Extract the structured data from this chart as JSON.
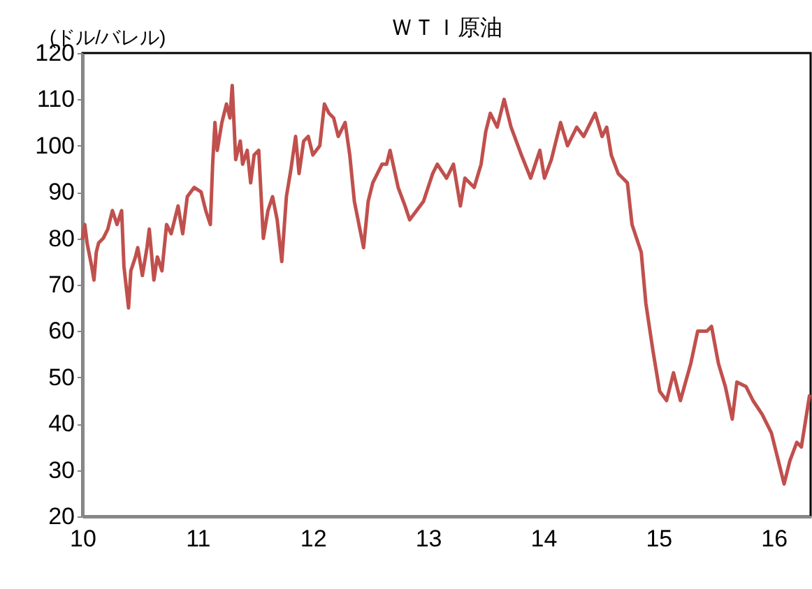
{
  "chart_data": {
    "type": "line",
    "title": "ＷＴＩ原油",
    "ylabel": "(ドル/バレル)",
    "xlim": [
      10,
      16.32
    ],
    "xticks": [
      10,
      11,
      12,
      13,
      14,
      15,
      16
    ],
    "ylim": [
      20,
      120
    ],
    "yticks": [
      20,
      30,
      40,
      50,
      60,
      70,
      80,
      90,
      100,
      110,
      120
    ],
    "grid": false,
    "x": [
      10.0,
      10.02,
      10.04,
      10.08,
      10.1,
      10.12,
      10.14,
      10.18,
      10.22,
      10.26,
      10.3,
      10.34,
      10.36,
      10.4,
      10.42,
      10.46,
      10.48,
      10.52,
      10.56,
      10.58,
      10.62,
      10.65,
      10.69,
      10.73,
      10.77,
      10.83,
      10.87,
      10.91,
      10.97,
      11.03,
      11.07,
      11.11,
      11.13,
      11.15,
      11.17,
      11.21,
      11.25,
      11.28,
      11.3,
      11.33,
      11.37,
      11.39,
      11.43,
      11.46,
      11.49,
      11.53,
      11.57,
      11.61,
      11.65,
      11.69,
      11.73,
      11.77,
      11.81,
      11.85,
      11.88,
      11.92,
      11.96,
      12.0,
      12.06,
      12.1,
      12.14,
      12.18,
      12.22,
      12.28,
      12.32,
      12.36,
      12.4,
      12.44,
      12.48,
      12.52,
      12.56,
      12.6,
      12.64,
      12.67,
      12.74,
      12.8,
      12.84,
      12.9,
      12.96,
      13.04,
      13.08,
      13.16,
      13.22,
      13.28,
      13.32,
      13.4,
      13.46,
      13.5,
      13.54,
      13.6,
      13.66,
      13.72,
      13.81,
      13.89,
      13.97,
      14.01,
      14.07,
      14.15,
      14.21,
      14.29,
      14.35,
      14.45,
      14.51,
      14.55,
      14.59,
      14.65,
      14.73,
      14.77,
      14.85,
      14.89,
      14.95,
      15.01,
      15.07,
      15.13,
      15.19,
      15.28,
      15.34,
      15.42,
      15.46,
      15.52,
      15.58,
      15.64,
      15.68,
      15.76,
      15.82,
      15.9,
      15.98,
      16.03,
      16.09,
      16.14,
      16.2,
      16.24,
      16.31
    ],
    "series": [
      {
        "color": "#c0504d",
        "values": [
          80,
          83,
          79,
          74,
          71,
          77,
          79,
          80,
          82,
          86,
          83,
          86,
          74,
          65,
          73,
          76,
          78,
          72,
          78,
          82,
          71,
          76,
          73,
          83,
          81,
          87,
          81,
          89,
          91,
          90,
          86,
          83,
          96,
          105,
          99,
          105,
          109,
          106,
          113,
          97,
          101,
          96,
          99,
          92,
          98,
          99,
          80,
          86,
          89,
          84,
          75,
          89,
          95,
          102,
          94,
          101,
          102,
          98,
          100,
          109,
          107,
          106,
          102,
          105,
          98,
          88,
          83,
          78,
          88,
          92,
          94,
          96,
          96,
          99,
          91,
          87,
          84,
          86,
          88,
          94,
          96,
          93,
          96,
          87,
          93,
          91,
          96,
          103,
          107,
          104,
          110,
          104,
          98,
          93,
          99,
          93,
          97,
          105,
          100,
          104,
          102,
          107,
          102,
          104,
          98,
          94,
          92,
          83,
          77,
          66,
          56,
          47,
          45,
          51,
          45,
          53,
          60,
          60,
          61,
          53,
          48,
          41,
          49,
          48,
          45,
          42,
          38,
          33,
          27,
          32,
          36,
          35,
          46
        ]
      }
    ]
  }
}
